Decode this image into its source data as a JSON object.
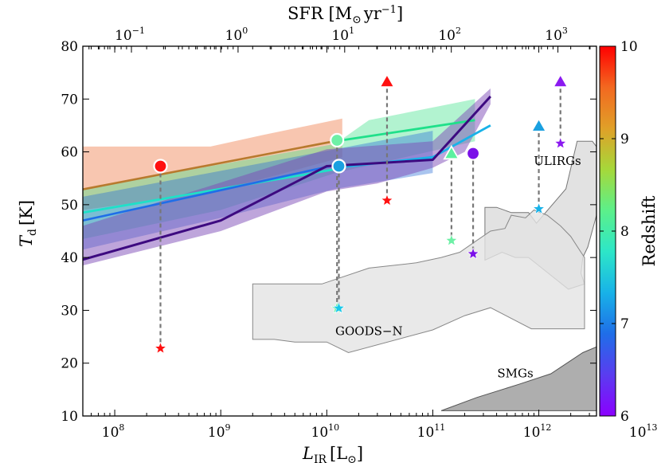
{
  "chart_data": {
    "type": "scatter",
    "xlabel": "L",
    "xlabel_sub": "IR",
    "xlabel_unit": "[L",
    "xlabel_unit_close": "]",
    "top_xlabel": "SFR [M",
    "top_xlabel_unit": "yr",
    "top_xlabel_unit_exp": "−1",
    "top_xlabel_close": "]",
    "ylabel": "T",
    "ylabel_sub": "d",
    "ylabel_unit": "[K]",
    "x_scale": "log",
    "xlim": [
      50000000,
      3500000000000
    ],
    "ylim": [
      10,
      80
    ],
    "top_xlim": [
      0.035,
      2300
    ],
    "x_ticks": [
      {
        "value": 100000000,
        "base": "10",
        "exp": "8"
      },
      {
        "value": 1000000000,
        "base": "10",
        "exp": "9"
      },
      {
        "value": 10000000000,
        "base": "10",
        "exp": "10"
      },
      {
        "value": 100000000000,
        "base": "10",
        "exp": "11"
      },
      {
        "value": 1000000000000,
        "base": "10",
        "exp": "12"
      },
      {
        "value": 10000000000000,
        "base": "10",
        "exp": "13"
      }
    ],
    "top_x_ticks": [
      {
        "value": 0.1,
        "base": "10",
        "exp": "−1"
      },
      {
        "value": 1,
        "base": "10",
        "exp": "0"
      },
      {
        "value": 10,
        "base": "10",
        "exp": "1"
      },
      {
        "value": 100,
        "base": "10",
        "exp": "2"
      },
      {
        "value": 1000,
        "base": "10",
        "exp": "3"
      }
    ],
    "y_ticks": [
      {
        "value": 10,
        "label": "10"
      },
      {
        "value": 20,
        "label": "20"
      },
      {
        "value": 30,
        "label": "30"
      },
      {
        "value": 40,
        "label": "40"
      },
      {
        "value": 50,
        "label": "50"
      },
      {
        "value": 60,
        "label": "60"
      },
      {
        "value": 70,
        "label": "70"
      },
      {
        "value": 80,
        "label": "80"
      }
    ],
    "colorbar": {
      "label": "Redshift",
      "range": [
        6,
        10
      ],
      "ticks": [
        "6",
        "7",
        "8",
        "9",
        "10"
      ],
      "colors": [
        "#8b00ff",
        "#5a3cf0",
        "#1f6ee8",
        "#18b2e8",
        "#2de6c8",
        "#5cf08a",
        "#a6d83a",
        "#e0a028",
        "#f36820",
        "#ff0000"
      ]
    },
    "regions": [
      {
        "label": "ULIRGs",
        "label_x": 1500000000000,
        "label_y": 57.5,
        "color": "#cfcfcf",
        "edge": "#777777",
        "alpha": 0.6,
        "points": [
          [
            310000000000,
            39.5
          ],
          [
            310000000000,
            49.5
          ],
          [
            400000000000,
            49.5
          ],
          [
            550000000000,
            48.5
          ],
          [
            800000000000,
            48.5
          ],
          [
            950000000000,
            46.5
          ],
          [
            1800000000000,
            53
          ],
          [
            2300000000000,
            62
          ],
          [
            3200000000000,
            62
          ],
          [
            3500000000000,
            61
          ],
          [
            3500000000000,
            48
          ],
          [
            2900000000000,
            42
          ],
          [
            2600000000000,
            40
          ],
          [
            2500000000000,
            37
          ],
          [
            2700000000000,
            35
          ],
          [
            1900000000000,
            34
          ],
          [
            800000000000,
            40
          ],
          [
            600000000000,
            40
          ],
          [
            450000000000,
            41
          ]
        ]
      },
      {
        "label": "GOODS−N",
        "label_x": 25000000000,
        "label_y": 25.3,
        "color": "#e3e3e3",
        "edge": "#888888",
        "alpha": 0.8,
        "points": [
          [
            2000000000,
            35
          ],
          [
            2000000000,
            24.5
          ],
          [
            3200000000,
            24.5
          ],
          [
            5000000000,
            24
          ],
          [
            10000000000,
            24
          ],
          [
            16000000000,
            22
          ],
          [
            100000000000,
            26.3
          ],
          [
            200000000000,
            29
          ],
          [
            350000000000,
            30.5
          ],
          [
            850000000000,
            26.5
          ],
          [
            2700000000000,
            26.5
          ],
          [
            2700000000000,
            40
          ],
          [
            2500000000000,
            41
          ],
          [
            2000000000000,
            44
          ],
          [
            1600000000000,
            46
          ],
          [
            1200000000000,
            48
          ],
          [
            900000000000,
            49
          ],
          [
            750000000000,
            47.5
          ],
          [
            550000000000,
            48
          ],
          [
            480000000000,
            45.5
          ],
          [
            350000000000,
            45
          ],
          [
            250000000000,
            43
          ],
          [
            180000000000,
            41
          ],
          [
            120000000000,
            40
          ],
          [
            70000000000,
            39
          ],
          [
            25000000000,
            38
          ],
          [
            9000000000,
            35
          ],
          [
            4000000000,
            35
          ]
        ]
      },
      {
        "label": "SMGs",
        "label_x": 600000000000,
        "label_y": 17.3,
        "color": "#9a9a9a",
        "edge": "#555555",
        "alpha": 0.8,
        "points": [
          [
            5000000000000,
            11
          ],
          [
            6000000000000,
            16
          ],
          [
            10000000000000,
            22
          ],
          [
            14000000000000,
            32
          ],
          [
            17000000000000,
            37
          ],
          [
            22000000000000,
            44
          ],
          [
            30000000000000,
            50
          ],
          [
            35000000000000,
            55
          ],
          [
            35000000000000,
            61
          ],
          [
            28000000000000,
            57
          ],
          [
            22000000000000,
            50
          ],
          [
            16000000000000,
            45
          ],
          [
            12000000000000,
            39
          ],
          [
            9000000000000,
            33
          ],
          [
            6500000000000,
            28
          ],
          [
            4500000000000,
            24
          ],
          [
            2600000000000,
            22
          ],
          [
            1300000000000,
            18
          ],
          [
            650000000000,
            16
          ],
          [
            260000000000,
            13.5
          ],
          [
            120000000000,
            11
          ]
        ]
      }
    ],
    "bands": [
      {
        "name": "",
        "z": 9.3,
        "color": "#f08050",
        "alpha": 0.45,
        "upper": [
          [
            50000000,
            61
          ],
          [
            800000000,
            61
          ],
          [
            2500000000,
            63.2
          ],
          [
            14000000000,
            66.3
          ],
          [
            14000000000,
            61.5
          ]
        ],
        "lower": [
          [
            14000000000,
            61.5
          ],
          [
            14000000000,
            59
          ],
          [
            4000000000,
            56
          ],
          [
            800000000,
            52.3
          ],
          [
            50000000,
            49
          ]
        ]
      },
      {
        "name": "",
        "z": 8.1,
        "color": "#3fe08a",
        "alpha": 0.4,
        "upper": [
          [
            50000000,
            53
          ],
          [
            12000000000,
            61.5
          ],
          [
            25000000000,
            66
          ],
          [
            250000000000,
            70
          ]
        ],
        "lower": [
          [
            250000000000,
            62
          ],
          [
            12000000000,
            56
          ],
          [
            1000000000,
            49
          ],
          [
            50000000,
            43.5
          ]
        ]
      },
      {
        "name": "",
        "z": 7.4,
        "color": "#2a6fd8",
        "alpha": 0.4,
        "upper": [
          [
            50000000,
            51.5
          ],
          [
            12000000000,
            60.5
          ],
          [
            30000000000,
            62
          ],
          [
            100000000000,
            64
          ]
        ],
        "lower": [
          [
            100000000000,
            56
          ],
          [
            12000000000,
            53
          ],
          [
            1000000000,
            47.5
          ],
          [
            50000000,
            41.5
          ]
        ]
      },
      {
        "name": "",
        "z": 6.3,
        "color": "#7d4bb8",
        "alpha": 0.5,
        "upper": [
          [
            50000000,
            46
          ],
          [
            10000000000,
            60.5
          ],
          [
            100000000000,
            62
          ],
          [
            350000000000,
            72
          ]
        ],
        "lower": [
          [
            350000000000,
            69
          ],
          [
            200000000000,
            60
          ],
          [
            100000000000,
            57
          ],
          [
            30000000000,
            54
          ],
          [
            10000000000,
            52.5
          ],
          [
            1000000000,
            45
          ],
          [
            50000000,
            38.5
          ]
        ]
      }
    ],
    "lines": [
      {
        "name": "",
        "z": 9.3,
        "color": "#b87a2e",
        "width": 2.6,
        "points": [
          [
            50000000,
            52.9
          ],
          [
            14000000000,
            62.3
          ]
        ]
      },
      {
        "name": "",
        "z": 8.1,
        "color": "#1fe08a",
        "width": 2.8,
        "points": [
          [
            12000000000,
            62
          ],
          [
            250000000000,
            66
          ]
        ]
      },
      {
        "name": "",
        "z": 7.6,
        "color": "#1fe0c8",
        "width": 2.8,
        "points": [
          [
            50000000,
            48.5
          ],
          [
            12000000000,
            56.7
          ]
        ]
      },
      {
        "name": "",
        "z": 7.0,
        "color": "#18b2e8",
        "width": 2.8,
        "points": [
          [
            12000000000,
            57
          ],
          [
            100000000000,
            59
          ],
          [
            350000000000,
            65
          ]
        ]
      },
      {
        "name": "",
        "z": 7.2,
        "color": "#1f6ee8",
        "width": 2.6,
        "points": [
          [
            50000000,
            47
          ],
          [
            12000000000,
            57.5
          ]
        ]
      },
      {
        "name": "",
        "z": 6.0,
        "color": "#3d0a80",
        "width": 3,
        "points": [
          [
            50000000,
            39.6
          ],
          [
            1000000000,
            47
          ],
          [
            10000000000,
            57.3
          ],
          [
            100000000000,
            58.5
          ],
          [
            350000000000,
            70.5
          ]
        ]
      }
    ],
    "connectors": [
      {
        "x": 270000000,
        "y1": 57.3,
        "y2": 22.8
      },
      {
        "x": 12500000000,
        "y1": 62.2,
        "y2": 30.4
      },
      {
        "x": 13000000000,
        "y1": 57.3,
        "y2": 30.4
      },
      {
        "x": 37000000000,
        "y1": 73.3,
        "y2": 50.8
      },
      {
        "x": 150000000000,
        "y1": 59.7,
        "y2": 43.2
      },
      {
        "x": 240000000000,
        "y1": 59.7,
        "y2": 40.7
      },
      {
        "x": 1000000000000,
        "y1": 64.9,
        "y2": 49.2
      },
      {
        "x": 1600000000000,
        "y1": 73.3,
        "y2": 61.6
      }
    ],
    "markers": [
      {
        "shape": "circle",
        "x": 270000000,
        "y": 57.3,
        "z": 9.9,
        "color": "#ff1010"
      },
      {
        "shape": "circle",
        "x": 12500000000,
        "y": 62.2,
        "z": 8.0,
        "color": "#6ef0a6"
      },
      {
        "shape": "circle",
        "x": 13000000000,
        "y": 57.3,
        "z": 7.2,
        "color": "#1aa0e0"
      },
      {
        "shape": "circle",
        "x": 240000000000,
        "y": 59.7,
        "z": 6.1,
        "color": "#7a10e8"
      },
      {
        "shape": "triangle",
        "x": 37000000000,
        "y": 73.3,
        "z": 9.9,
        "color": "#ff1010"
      },
      {
        "shape": "triangle",
        "x": 150000000000,
        "y": 59.7,
        "z": 7.9,
        "color": "#5cf0a0"
      },
      {
        "shape": "triangle",
        "x": 1000000000000,
        "y": 64.9,
        "z": 7.2,
        "color": "#1aa0e0"
      },
      {
        "shape": "triangle",
        "x": 1600000000000,
        "y": 73.3,
        "z": 6.1,
        "color": "#8b1af0"
      },
      {
        "shape": "star",
        "x": 270000000,
        "y": 22.8,
        "z": 9.9,
        "color": "#ff1010"
      },
      {
        "shape": "star",
        "x": 12500000000,
        "y": 30.4,
        "z": 8.0,
        "color": "#6ef0a6"
      },
      {
        "shape": "star",
        "x": 13000000000,
        "y": 30.4,
        "z": 7.2,
        "color": "#18c8e8"
      },
      {
        "shape": "star",
        "x": 37000000000,
        "y": 50.8,
        "z": 9.9,
        "color": "#ff1010"
      },
      {
        "shape": "star",
        "x": 150000000000,
        "y": 43.2,
        "z": 7.9,
        "color": "#6ef0a6"
      },
      {
        "shape": "star",
        "x": 240000000000,
        "y": 40.7,
        "z": 6.1,
        "color": "#7a10e8"
      },
      {
        "shape": "star",
        "x": 1000000000000,
        "y": 49.2,
        "z": 7.2,
        "color": "#18b2e8"
      },
      {
        "shape": "star",
        "x": 1600000000000,
        "y": 61.6,
        "z": 6.1,
        "color": "#8b1af0"
      }
    ]
  }
}
